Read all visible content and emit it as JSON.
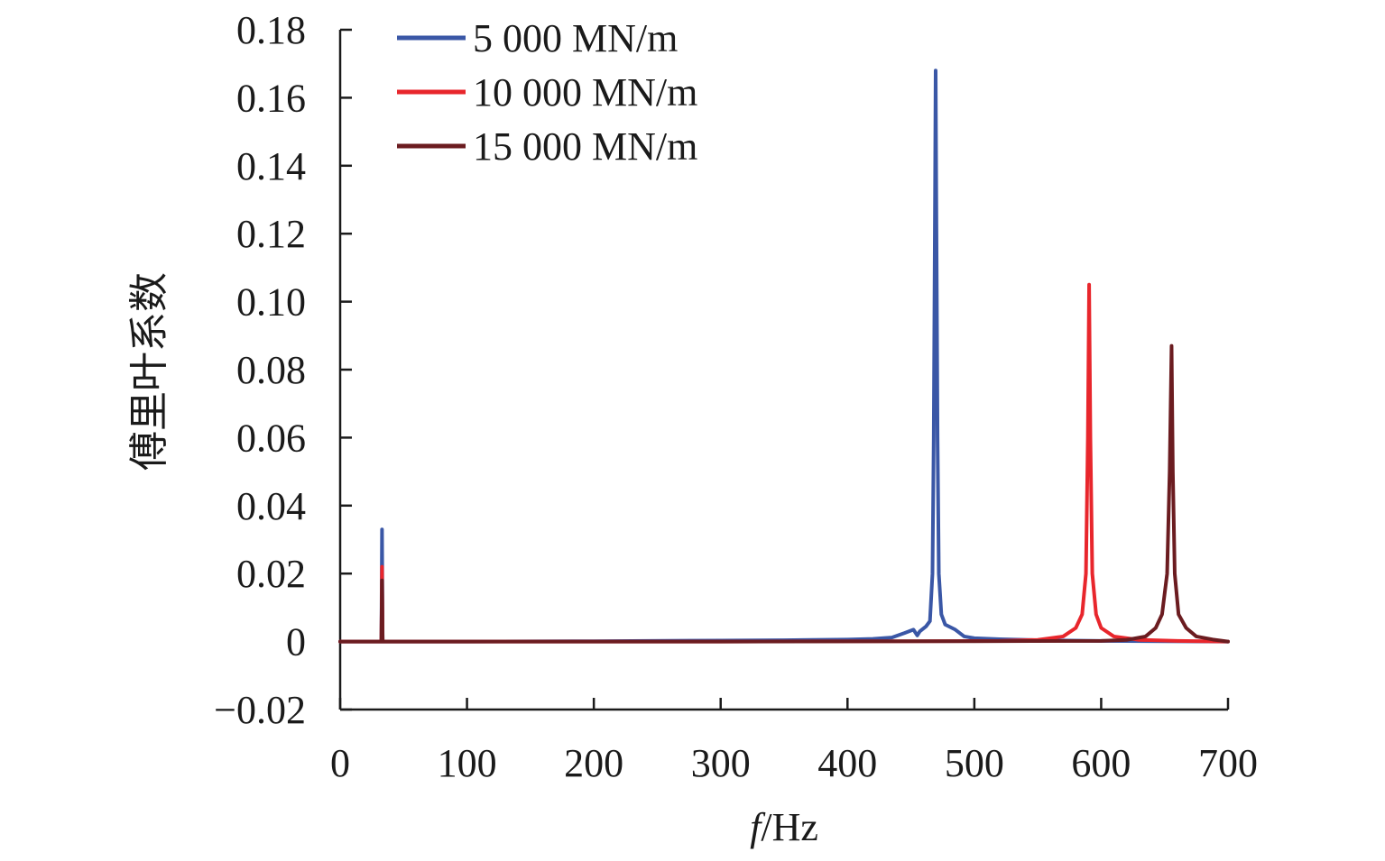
{
  "chart_data": {
    "type": "line",
    "title": "",
    "xlabel": {
      "italic": "f",
      "rest": "/Hz"
    },
    "ylabel": "傅里叶系数",
    "xlim": [
      0,
      700
    ],
    "ylim": [
      -0.02,
      0.18
    ],
    "xticks": [
      0,
      100,
      200,
      300,
      400,
      500,
      600,
      700
    ],
    "xtick_labels": [
      "0",
      "100",
      "200",
      "300",
      "400",
      "500",
      "600",
      "700"
    ],
    "yticks": [
      -0.02,
      0,
      0.02,
      0.04,
      0.06,
      0.08,
      0.1,
      0.12,
      0.14,
      0.16,
      0.18
    ],
    "ytick_labels": [
      "−0.02",
      "0",
      "0.02",
      "0.04",
      "0.06",
      "0.08",
      "0.10",
      "0.12",
      "0.14",
      "0.16",
      "0.18"
    ],
    "grid": false,
    "legend_position": "top-left",
    "series": [
      {
        "name": "5 000 MN/m",
        "color": "#3a57a6",
        "points": [
          [
            0,
            0
          ],
          [
            32.5,
            0
          ],
          [
            33,
            0.033
          ],
          [
            33.5,
            0
          ],
          [
            100,
            0
          ],
          [
            200,
            0.0001
          ],
          [
            300,
            0.0003
          ],
          [
            350,
            0.0004
          ],
          [
            400,
            0.0006
          ],
          [
            420,
            0.0008
          ],
          [
            435,
            0.0012
          ],
          [
            445,
            0.0025
          ],
          [
            452,
            0.0035
          ],
          [
            455,
            0.0018
          ],
          [
            457,
            0.003
          ],
          [
            462,
            0.0045
          ],
          [
            465,
            0.006
          ],
          [
            467,
            0.02
          ],
          [
            468,
            0.06
          ],
          [
            469,
            0.13
          ],
          [
            469.5,
            0.168
          ],
          [
            470,
            0.13
          ],
          [
            471,
            0.06
          ],
          [
            472,
            0.02
          ],
          [
            474,
            0.008
          ],
          [
            477,
            0.005
          ],
          [
            485,
            0.0035
          ],
          [
            492,
            0.0015
          ],
          [
            500,
            0.001
          ],
          [
            520,
            0.0007
          ],
          [
            550,
            0.0004
          ],
          [
            600,
            0.0002
          ],
          [
            650,
            0.0001
          ],
          [
            700,
            0
          ]
        ]
      },
      {
        "name": "10 000 MN/m",
        "color": "#e8262c",
        "points": [
          [
            0,
            0
          ],
          [
            32.5,
            0
          ],
          [
            33,
            0.022
          ],
          [
            33.5,
            0
          ],
          [
            100,
            0
          ],
          [
            300,
            0
          ],
          [
            450,
            0.0001
          ],
          [
            520,
            0.0002
          ],
          [
            550,
            0.0005
          ],
          [
            570,
            0.0015
          ],
          [
            580,
            0.004
          ],
          [
            585,
            0.008
          ],
          [
            588,
            0.02
          ],
          [
            589.5,
            0.06
          ],
          [
            590.5,
            0.105
          ],
          [
            591.5,
            0.06
          ],
          [
            593,
            0.02
          ],
          [
            596,
            0.008
          ],
          [
            600,
            0.004
          ],
          [
            610,
            0.0015
          ],
          [
            630,
            0.0005
          ],
          [
            660,
            0.0002
          ],
          [
            700,
            0
          ]
        ]
      },
      {
        "name": "15 000 MN/m",
        "color": "#6b1c20",
        "points": [
          [
            0,
            0
          ],
          [
            32.5,
            0
          ],
          [
            33,
            0.018
          ],
          [
            33.5,
            0
          ],
          [
            100,
            0
          ],
          [
            300,
            0
          ],
          [
            500,
            0.0001
          ],
          [
            600,
            0.0002
          ],
          [
            620,
            0.0005
          ],
          [
            635,
            0.0015
          ],
          [
            643,
            0.004
          ],
          [
            648,
            0.008
          ],
          [
            652,
            0.02
          ],
          [
            654,
            0.05
          ],
          [
            655.5,
            0.087
          ],
          [
            656.5,
            0.05
          ],
          [
            658,
            0.02
          ],
          [
            661,
            0.008
          ],
          [
            667,
            0.004
          ],
          [
            675,
            0.0015
          ],
          [
            688,
            0.0006
          ],
          [
            700,
            0
          ]
        ]
      }
    ]
  }
}
